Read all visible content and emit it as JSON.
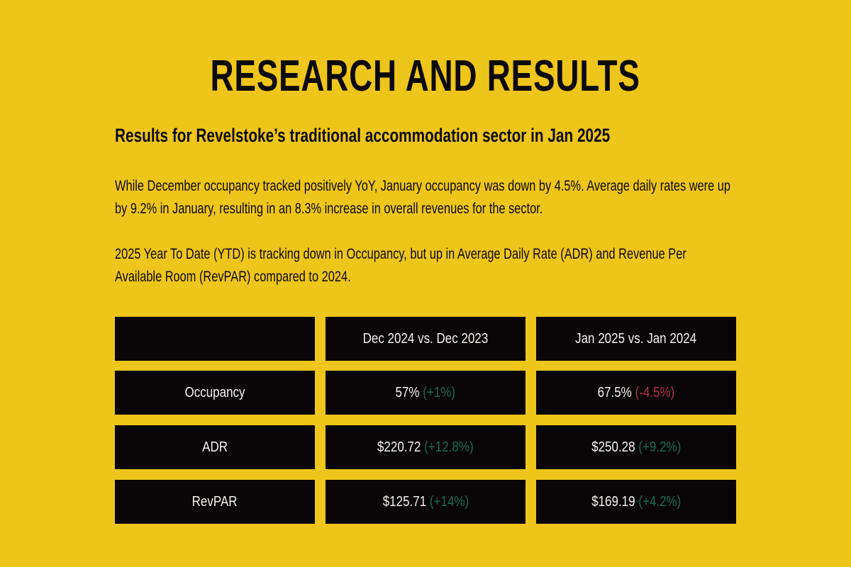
{
  "header": {
    "title": "RESEARCH AND RESULTS",
    "subtitle": "Results for Revelstoke’s traditional accommodation sector in Jan 2025"
  },
  "paragraphs": [
    "While December occupancy tracked positively YoY, January occupancy was down by 4.5%. Average daily rates were up by 9.2% in January, resulting in an 8.3% increase in overall revenues for the sector.",
    "2025 Year To Date (YTD) is tracking down in Occupancy, but up in Average Daily Rate (ADR) and Revenue Per Available Room (RevPAR) compared to 2024."
  ],
  "table": {
    "columns": [
      "Dec 2024 vs. Dec 2023",
      "Jan 2025 vs. Jan 2024"
    ],
    "rows": [
      {
        "label": "Occupancy",
        "cells": [
          {
            "value": "57%",
            "change": "(+1%)",
            "color": "#1d6b50"
          },
          {
            "value": "67.5%",
            "change": "(-4.5%)",
            "color": "#b3304c"
          }
        ]
      },
      {
        "label": "ADR",
        "cells": [
          {
            "value": "$220.72",
            "change": "(+12.8%)",
            "color": "#1d6b50"
          },
          {
            "value": "$250.28",
            "change": "(+9.2%)",
            "color": "#1d6b50"
          }
        ]
      },
      {
        "label": "RevPAR",
        "cells": [
          {
            "value": "$125.71",
            "change": "(+14%)",
            "color": "#1d6b50"
          },
          {
            "value": "$169.19",
            "change": "(+4.2%)",
            "color": "#1d6b50"
          }
        ]
      }
    ]
  }
}
